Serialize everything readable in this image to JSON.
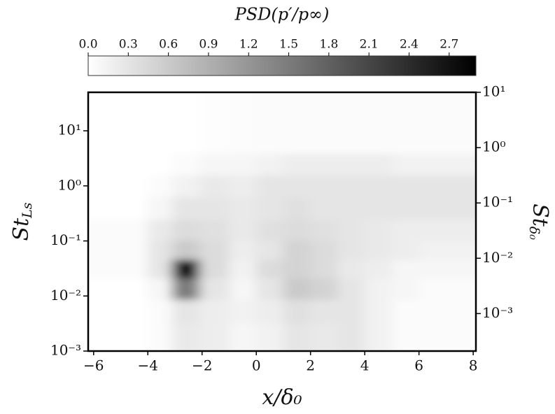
{
  "chart_data": {
    "type": "heatmap",
    "title": "PSD(p′/p∞)",
    "xlabel": "x/δ₀",
    "ylabel": {
      "main": "St",
      "sub": "Ls"
    },
    "y2label": {
      "main": "St",
      "sub": "δ₀"
    },
    "colormap": "Greys",
    "zlim": [
      0,
      2.9
    ],
    "zticks": [
      {
        "value": 0,
        "label": "0.0"
      },
      0.3,
      0.6,
      0.9,
      1.2,
      1.5,
      1.8,
      2.1,
      2.4,
      2.7
    ],
    "xlim": [
      -6.2,
      8.1
    ],
    "xticks": [
      {
        "value": -6,
        "label": "−6"
      },
      {
        "value": -4,
        "label": "−4"
      },
      {
        "value": -2,
        "label": "−2"
      },
      0,
      2,
      4,
      6,
      8
    ],
    "ylim": [
      0.001,
      50
    ],
    "yscale": "log",
    "yticks": [
      {
        "value": 0.001,
        "label": "10⁻³"
      },
      {
        "value": 0.01,
        "label": "10⁻²"
      },
      {
        "value": 0.1,
        "label": "10⁻¹"
      },
      {
        "value": 1,
        "label": "10⁰"
      },
      {
        "value": 10,
        "label": "10¹"
      }
    ],
    "y2lim": [
      0.00021,
      10
    ],
    "y2ticks": [
      {
        "value": 0.001,
        "label": "10⁻³"
      },
      {
        "value": 0.01,
        "label": "10⁻²"
      },
      {
        "value": 0.1,
        "label": "10⁻¹"
      },
      {
        "value": 1,
        "label": "10⁰"
      },
      {
        "value": 10,
        "label": "10¹"
      }
    ],
    "x": [
      -4.5,
      -3.5,
      -2.7,
      -1.5,
      -0.5,
      0.5,
      1.5,
      2.5,
      3.5,
      4.5,
      5.5,
      6.5,
      7.5
    ],
    "y": [
      0.002,
      0.005,
      0.015,
      0.03,
      0.07,
      0.15,
      0.4,
      1,
      2.5,
      6
    ],
    "z": [
      [
        0,
        0.05,
        0.25,
        0.2,
        0.1,
        0.15,
        0.3,
        0.25,
        0.3,
        0.15,
        0.05,
        0.05,
        0.05
      ],
      [
        0,
        0.05,
        0.3,
        0.2,
        0.15,
        0.2,
        0.35,
        0.3,
        0.3,
        0.15,
        0.05,
        0.05,
        0.05
      ],
      [
        0,
        0.1,
        1.5,
        0.3,
        0.1,
        0.3,
        0.6,
        0.5,
        0.3,
        0.15,
        0.1,
        0.05,
        0.05
      ],
      [
        0.05,
        0.3,
        2.8,
        0.4,
        0.15,
        0.4,
        0.5,
        0.4,
        0.25,
        0.2,
        0.1,
        0.1,
        0.1
      ],
      [
        0.05,
        0.3,
        0.6,
        0.4,
        0.2,
        0.3,
        0.5,
        0.4,
        0.3,
        0.25,
        0.2,
        0.15,
        0.15
      ],
      [
        0.05,
        0.25,
        0.4,
        0.35,
        0.25,
        0.35,
        0.4,
        0.35,
        0.3,
        0.25,
        0.2,
        0.2,
        0.2
      ],
      [
        0,
        0.1,
        0.3,
        0.3,
        0.25,
        0.3,
        0.35,
        0.3,
        0.3,
        0.3,
        0.3,
        0.3,
        0.3
      ],
      [
        0,
        0.05,
        0.15,
        0.25,
        0.2,
        0.3,
        0.3,
        0.3,
        0.3,
        0.3,
        0.3,
        0.3,
        0.3
      ],
      [
        0,
        0,
        0.05,
        0.1,
        0.1,
        0.15,
        0.2,
        0.2,
        0.2,
        0.2,
        0.15,
        0.15,
        0.15
      ],
      [
        0,
        0,
        0,
        0.02,
        0.03,
        0.05,
        0.05,
        0.05,
        0.05,
        0.05,
        0.05,
        0.05,
        0.05
      ]
    ]
  }
}
